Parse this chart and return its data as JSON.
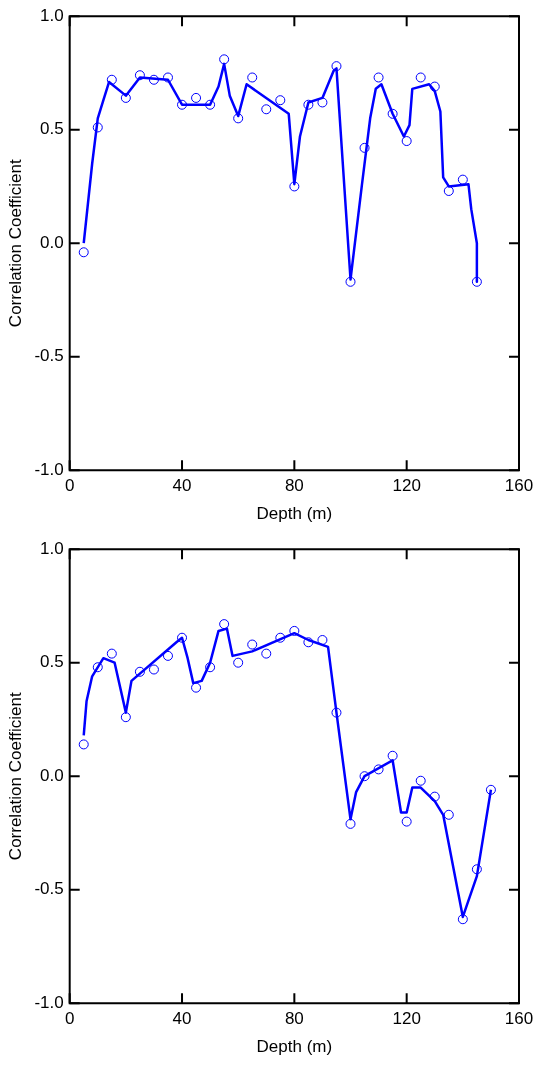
{
  "chart_data": [
    {
      "type": "scatter",
      "xlabel": "Depth (m)",
      "ylabel": "Correlation Coefficient",
      "xlim": [
        0,
        160
      ],
      "xticks": [
        0,
        40,
        80,
        120,
        160
      ],
      "ylim": [
        -1,
        1
      ],
      "yticks": [
        {
          "value": -1,
          "label": "-1.0"
        },
        {
          "value": -0.5,
          "label": "-0.5"
        },
        {
          "value": 0,
          "label": "0.0"
        },
        {
          "value": 0.5,
          "label": "0.5"
        },
        {
          "value": 1,
          "label": "1.0"
        }
      ],
      "grid": false,
      "legend": false,
      "series": [
        {
          "marker": "circle",
          "color": "#0000ff",
          "x": [
            5,
            10,
            15,
            20,
            25,
            30,
            35,
            40,
            45,
            50,
            55,
            60,
            65,
            70,
            75,
            80,
            85,
            90,
            95,
            100,
            105,
            110,
            115,
            120,
            125,
            130,
            135,
            140,
            145
          ],
          "values": [
            -0.04,
            0.51,
            0.72,
            0.64,
            0.74,
            0.72,
            0.73,
            0.61,
            0.64,
            0.61,
            0.81,
            0.55,
            0.73,
            0.59,
            0.63,
            0.25,
            0.61,
            0.62,
            0.78,
            -0.17,
            0.42,
            0.73,
            0.57,
            0.45,
            0.73,
            0.69,
            0.23,
            0.28,
            -0.17
          ]
        },
        {
          "type": "line",
          "marker": "none",
          "line_style": "solid",
          "color": "#0000ff",
          "x": [
            5,
            8,
            10,
            12,
            14,
            20,
            25,
            35,
            40,
            50,
            53,
            55,
            57,
            60,
            63,
            78,
            80,
            82,
            85,
            90,
            94,
            95,
            100,
            104,
            107,
            109,
            111,
            115,
            119,
            121,
            122,
            128,
            130,
            132,
            133,
            135,
            142,
            143,
            145,
            145
          ],
          "values": [
            0.0,
            0.35,
            0.55,
            0.63,
            0.71,
            0.65,
            0.73,
            0.72,
            0.61,
            0.61,
            0.69,
            0.79,
            0.65,
            0.56,
            0.7,
            0.57,
            0.26,
            0.47,
            0.62,
            0.64,
            0.76,
            0.77,
            -0.16,
            0.25,
            0.55,
            0.68,
            0.7,
            0.57,
            0.47,
            0.52,
            0.68,
            0.7,
            0.67,
            0.58,
            0.29,
            0.25,
            0.26,
            0.15,
            0.0,
            -0.17
          ]
        }
      ]
    },
    {
      "type": "scatter",
      "xlabel": "Depth (m)",
      "ylabel": "Correlation Coefficient",
      "xlim": [
        0,
        160
      ],
      "xticks": [
        0,
        40,
        80,
        120,
        160
      ],
      "ylim": [
        -1,
        1
      ],
      "yticks": [
        {
          "value": -1,
          "label": "-1.0"
        },
        {
          "value": -0.5,
          "label": "-0.5"
        },
        {
          "value": 0,
          "label": "0.0"
        },
        {
          "value": 0.5,
          "label": "0.5"
        },
        {
          "value": 1,
          "label": "1.0"
        }
      ],
      "grid": false,
      "legend": false,
      "series": [
        {
          "marker": "circle",
          "color": "#0000ff",
          "x": [
            5,
            10,
            15,
            20,
            25,
            30,
            35,
            40,
            45,
            50,
            55,
            60,
            65,
            70,
            75,
            80,
            85,
            90,
            95,
            100,
            105,
            110,
            115,
            120,
            125,
            130,
            135,
            140,
            145,
            150
          ],
          "values": [
            0.14,
            0.48,
            0.54,
            0.26,
            0.46,
            0.47,
            0.53,
            0.61,
            0.39,
            0.48,
            0.67,
            0.5,
            0.58,
            0.54,
            0.61,
            0.64,
            0.59,
            0.6,
            0.28,
            -0.21,
            0.0,
            0.03,
            0.09,
            -0.2,
            -0.02,
            -0.09,
            -0.17,
            -0.63,
            -0.41,
            -0.06
          ]
        },
        {
          "type": "line",
          "marker": "none",
          "line_style": "solid",
          "color": "#0000ff",
          "x": [
            5,
            6,
            8,
            12,
            16,
            20,
            22,
            38,
            40,
            42,
            44,
            47,
            50,
            53,
            56,
            58,
            65,
            80,
            85,
            92,
            95,
            100,
            102,
            105,
            115,
            118,
            120,
            122,
            125,
            130,
            133,
            140,
            145,
            150
          ],
          "values": [
            0.18,
            0.33,
            0.44,
            0.52,
            0.5,
            0.28,
            0.42,
            0.59,
            0.61,
            0.52,
            0.41,
            0.42,
            0.5,
            0.64,
            0.65,
            0.53,
            0.55,
            0.63,
            0.6,
            0.57,
            0.28,
            -0.19,
            -0.07,
            0.0,
            0.07,
            -0.16,
            -0.16,
            -0.05,
            -0.05,
            -0.11,
            -0.17,
            -0.62,
            -0.44,
            -0.06
          ]
        }
      ]
    }
  ]
}
